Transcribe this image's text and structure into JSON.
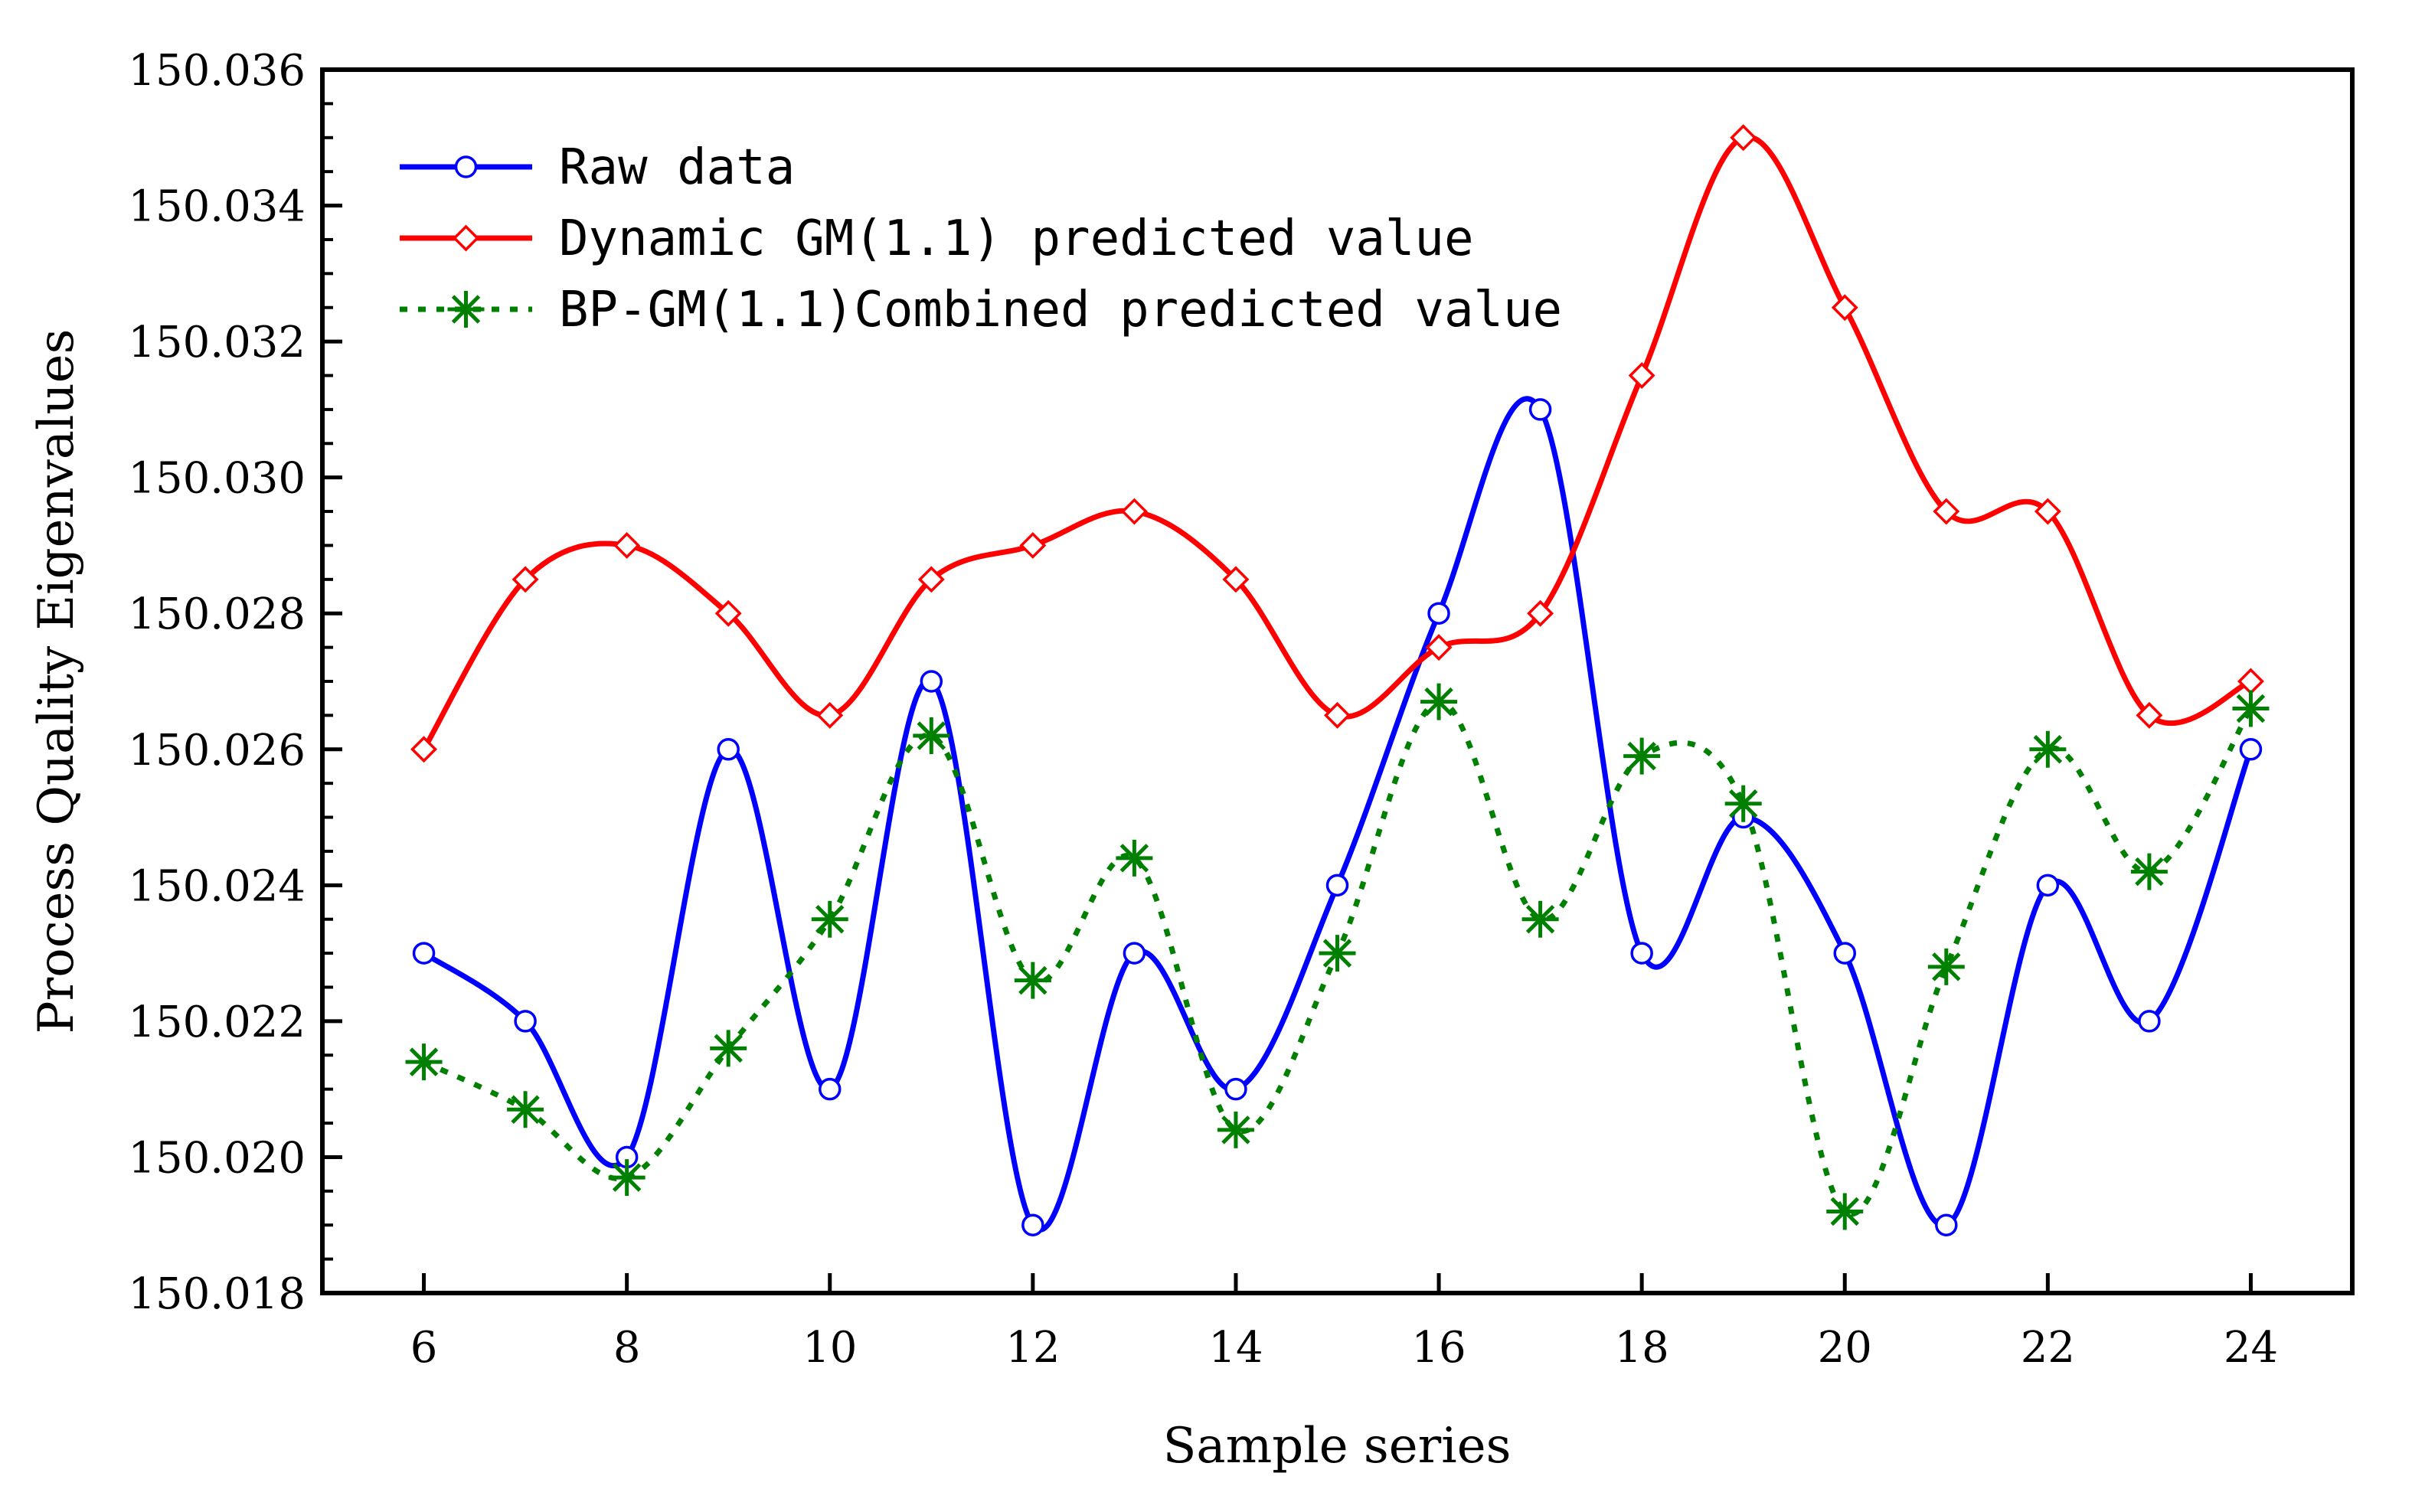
{
  "chart_data": {
    "type": "line",
    "title": "",
    "xlabel": "Sample series",
    "ylabel": "Process Quality Eigenvalues",
    "xlim": [
      5,
      25
    ],
    "ylim": [
      150.018,
      150.036
    ],
    "xticks": [
      6,
      8,
      10,
      12,
      14,
      16,
      18,
      20,
      22,
      24
    ],
    "xtick_labels": [
      "6",
      "8",
      "10",
      "12",
      "14",
      "16",
      "18",
      "20",
      "22",
      "24"
    ],
    "yticks": [
      150.018,
      150.02,
      150.022,
      150.024,
      150.026,
      150.028,
      150.03,
      150.032,
      150.034,
      150.036
    ],
    "ytick_labels": [
      "150.018",
      "150.020",
      "150.022",
      "150.024",
      "150.026",
      "150.028",
      "150.030",
      "150.032",
      "150.034",
      "150.036"
    ],
    "grid": false,
    "legend_position": "top-left",
    "x": [
      6,
      7,
      8,
      9,
      10,
      11,
      12,
      13,
      14,
      15,
      16,
      17,
      18,
      19,
      20,
      21,
      22,
      23,
      24
    ],
    "series": [
      {
        "name": "Raw data",
        "color": "#0000ff",
        "marker": "circle",
        "line_style": "solid",
        "values": [
          150.023,
          150.022,
          150.02,
          150.026,
          150.021,
          150.027,
          150.019,
          150.023,
          150.021,
          150.024,
          150.028,
          150.031,
          150.023,
          150.025,
          150.023,
          150.019,
          150.024,
          150.022,
          150.026
        ]
      },
      {
        "name": "Dynamic GM(1.1) predicted value",
        "color": "#ff0000",
        "marker": "diamond",
        "line_style": "solid",
        "values": [
          150.026,
          150.0285,
          150.029,
          150.028,
          150.0265,
          150.0285,
          150.029,
          150.0295,
          150.0285,
          150.0265,
          150.0275,
          150.028,
          150.0315,
          150.035,
          150.0325,
          150.0295,
          150.0295,
          150.0265,
          150.027
        ]
      },
      {
        "name": "BP-GM(1.1)Combined predicted value",
        "color": "#008000",
        "marker": "asterisk",
        "line_style": "dotted",
        "values": [
          150.0214,
          150.0207,
          150.0197,
          150.0216,
          150.0235,
          150.0262,
          150.0226,
          150.0244,
          150.0204,
          150.023,
          150.0267,
          150.0235,
          150.0259,
          150.0252,
          150.0192,
          150.0228,
          150.026,
          150.0242,
          150.0266
        ]
      }
    ]
  }
}
